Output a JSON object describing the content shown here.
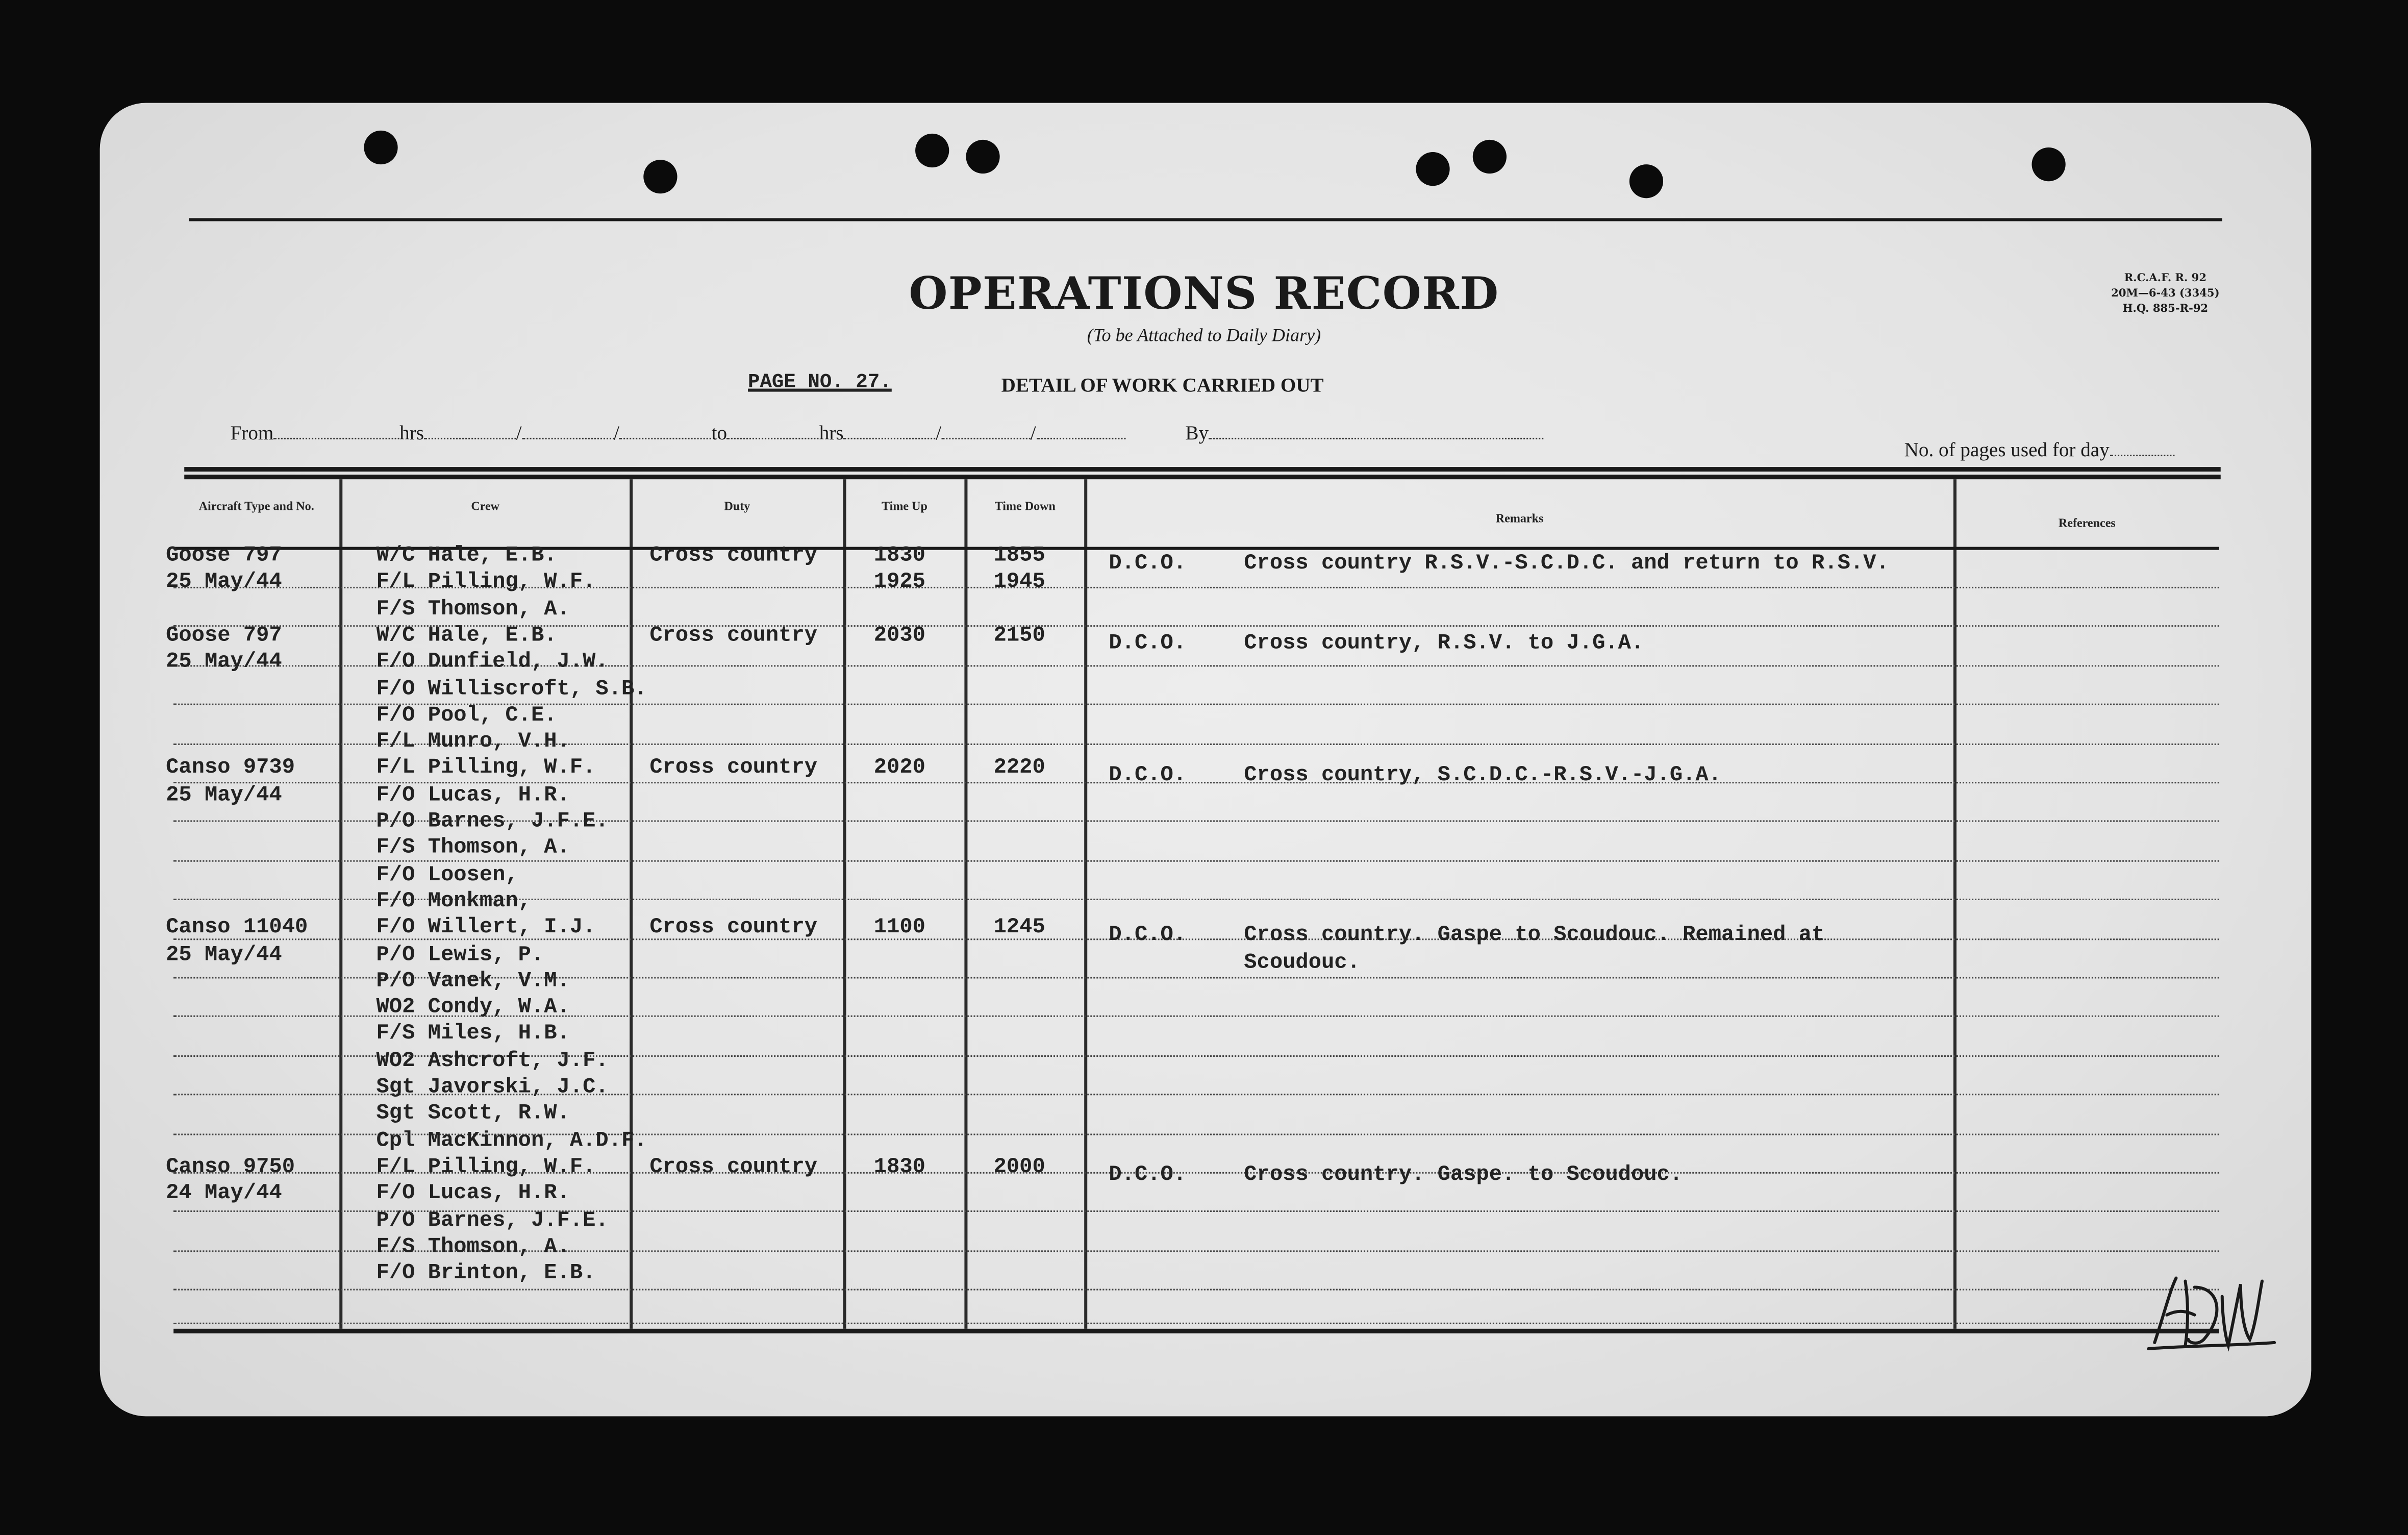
{
  "form": {
    "title": "OPERATIONS RECORD",
    "subtitle": "(To be Attached to Daily Diary)",
    "form_code": [
      "R.C.A.F. R. 92",
      "20M—6-43 (3345)",
      "H.Q. 885-R-92"
    ],
    "page_no": "PAGE NO. 27.",
    "section_title": "DETAIL OF WORK CARRIED OUT",
    "from_label": "From",
    "hrs_label": "hrs",
    "to_label": "to",
    "by_label": "By",
    "pages_label": "No. of pages used for day",
    "signature": "HDM"
  },
  "columns": {
    "aircraft": "Aircraft Type and No.",
    "crew": "Crew",
    "duty": "Duty",
    "time_up": "Time Up",
    "time_down": "Time Down",
    "remarks": "Remarks",
    "references": "References"
  },
  "flights": [
    {
      "aircraft": "Goose  797",
      "date": "25 May/44",
      "crew": [
        "W/C Hale, E.B.",
        "F/L Pilling, W.F.",
        "F/S Thomson, A."
      ],
      "duty": "Cross country",
      "time_up": [
        "1830",
        "1925"
      ],
      "time_down": [
        "1855",
        "1945"
      ],
      "dco": "D.C.O.",
      "remarks": [
        "Cross country R.S.V.-S.C.D.C. and return to R.S.V."
      ]
    },
    {
      "aircraft": "Goose 797",
      "date": "25 May/44",
      "crew": [
        "W/C Hale, E.B.",
        "F/O Dunfield, J.W.",
        "F/O Williscroft, S.B.",
        "F/O Pool, C.E.",
        "F/L Munro, V.H."
      ],
      "duty": "Cross country",
      "time_up": [
        "2030"
      ],
      "time_down": [
        "2150"
      ],
      "dco": "D.C.O.",
      "remarks": [
        "Cross country, R.S.V. to J.G.A."
      ]
    },
    {
      "aircraft": "Canso 9739",
      "date": "25 May/44",
      "crew": [
        "F/L Pilling, W.F.",
        "F/O Lucas, H.R.",
        "P/O Barnes, J.F.E.",
        "F/S Thomson, A.",
        "F/O Loosen,",
        "F/O Monkman,"
      ],
      "duty": "Cross country",
      "time_up": [
        "2020"
      ],
      "time_down": [
        "2220"
      ],
      "dco": "D.C.O.",
      "remarks": [
        "Cross country, S.C.D.C.-R.S.V.-J.G.A."
      ]
    },
    {
      "aircraft": "Canso 11040",
      "date": "25 May/44",
      "crew": [
        "F/O Willert, I.J.",
        "P/O Lewis, P.",
        "P/O Vanek, V.M.",
        "WO2 Condy, W.A.",
        "F/S Miles, H.B.",
        "WO2 Ashcroft, J.F.",
        "Sgt Javorski, J.C.",
        "Sgt Scott, R.W.",
        "Cpl MacKinnon, A.D.F."
      ],
      "duty": "Cross country",
      "time_up": [
        "1100"
      ],
      "time_down": [
        "1245"
      ],
      "dco": "D.C.O.",
      "remarks": [
        "Cross country. Gaspe to Scoudouc.  Remained at",
        "Scoudouc."
      ]
    },
    {
      "aircraft": "Canso 9750",
      "date": "24 May/44",
      "crew": [
        "F/L Pilling, W.F.",
        "F/O Lucas, H.R.",
        "P/O Barnes, J.F.E.",
        "F/S Thomson, A.",
        "F/O Brinton, E.B."
      ],
      "duty": "Cross country",
      "time_up": [
        "1830"
      ],
      "time_down": [
        "2000"
      ],
      "dco": "D.C.O.",
      "remarks": [
        "Cross country. Gaspe. to Scoudouc."
      ]
    }
  ]
}
